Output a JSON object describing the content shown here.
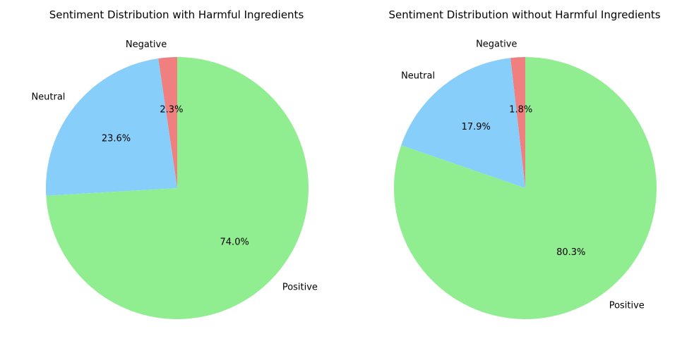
{
  "chart_data": [
    {
      "type": "pie",
      "title": "Sentiment Distribution with Harmful Ingredients",
      "categories": [
        "Negative",
        "Neutral",
        "Positive"
      ],
      "values": [
        2.3,
        23.6,
        74.0
      ],
      "value_labels": [
        "2.3%",
        "23.6%",
        "74.0%"
      ],
      "colors": [
        "#f08080",
        "#87cefa",
        "#90ee90"
      ],
      "start_angle": "90° (top), counter-clockwise",
      "legend": "none"
    },
    {
      "type": "pie",
      "title": "Sentiment Distribution without Harmful Ingredients",
      "categories": [
        "Negative",
        "Neutral",
        "Positive"
      ],
      "values": [
        1.8,
        17.9,
        80.3
      ],
      "value_labels": [
        "1.8%",
        "17.9%",
        "80.3%"
      ],
      "colors": [
        "#f08080",
        "#87cefa",
        "#90ee90"
      ],
      "start_angle": "90° (top), counter-clockwise",
      "legend": "none"
    }
  ]
}
